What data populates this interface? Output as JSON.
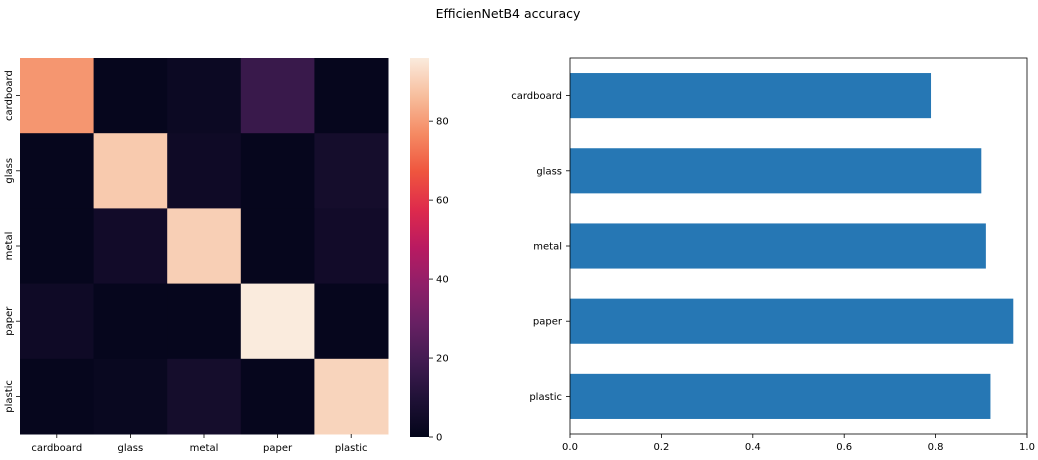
{
  "figure": {
    "title": "EfficienNetB4 accuracy"
  },
  "chart_data": [
    {
      "type": "heatmap",
      "x_categories": [
        "cardboard",
        "glass",
        "metal",
        "paper",
        "plastic"
      ],
      "y_categories": [
        "cardboard",
        "glass",
        "metal",
        "paper",
        "plastic"
      ],
      "values": [
        [
          79,
          1,
          3,
          17,
          1
        ],
        [
          1,
          89,
          4,
          1,
          6
        ],
        [
          1,
          5,
          90,
          1,
          5
        ],
        [
          4,
          1,
          1,
          96,
          1
        ],
        [
          1,
          2,
          6,
          1,
          91
        ]
      ],
      "colorbar": {
        "min": 0,
        "max": 96,
        "ticks": [
          0,
          20,
          40,
          60,
          80
        ]
      },
      "colormap": "rocket",
      "title": "",
      "xlabel": "",
      "ylabel": ""
    },
    {
      "type": "bar",
      "orientation": "horizontal",
      "categories": [
        "cardboard",
        "glass",
        "metal",
        "paper",
        "plastic"
      ],
      "values": [
        0.79,
        0.9,
        0.91,
        0.97,
        0.92
      ],
      "color": "#2677b4",
      "xlim": [
        0,
        1.0
      ],
      "xticks": [
        0.0,
        0.2,
        0.4,
        0.6,
        0.8,
        1.0
      ],
      "xtick_labels": [
        "0.0",
        "0.2",
        "0.4",
        "0.6",
        "0.8",
        "1.0"
      ],
      "title": "",
      "xlabel": "",
      "ylabel": "",
      "grid": false
    }
  ]
}
